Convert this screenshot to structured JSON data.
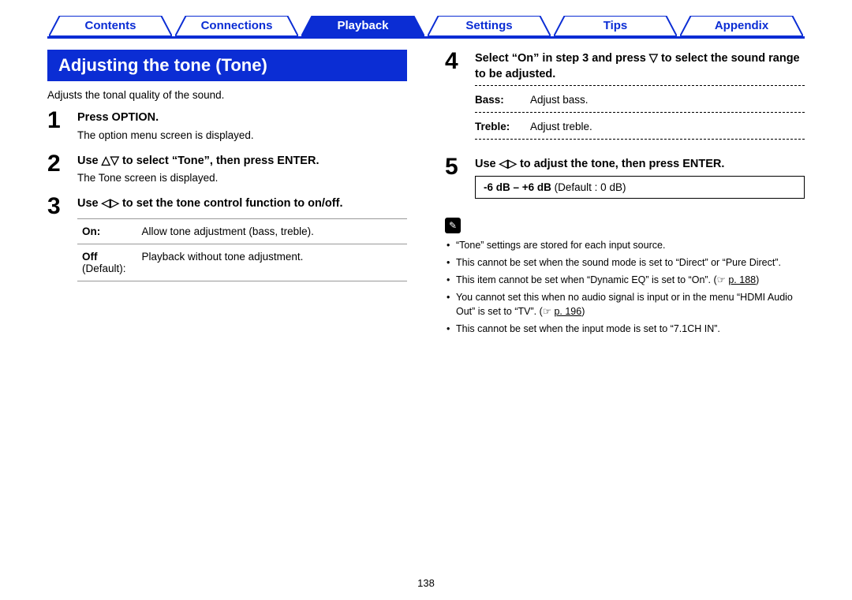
{
  "tabs": [
    {
      "label": "Contents",
      "active": false
    },
    {
      "label": "Connections",
      "active": false
    },
    {
      "label": "Playback",
      "active": true
    },
    {
      "label": "Settings",
      "active": false
    },
    {
      "label": "Tips",
      "active": false
    },
    {
      "label": "Appendix",
      "active": false
    }
  ],
  "colors": {
    "accent": "#0b2dd4",
    "text": "#000000",
    "bg": "#ffffff"
  },
  "heading": "Adjusting the tone (Tone)",
  "intro": "Adjusts the tonal quality of the sound.",
  "left_steps": [
    {
      "num": "1",
      "bold": "Press OPTION.",
      "sub": "The option menu screen is displayed."
    },
    {
      "num": "2",
      "bold_parts": [
        "Use ",
        "△▽",
        " to select “Tone”, then press ENTER."
      ],
      "sub": "The Tone screen is displayed."
    },
    {
      "num": "3",
      "bold_parts": [
        "Use ",
        "◁▷",
        " to set the tone control function to on/off."
      ],
      "table": [
        {
          "k": "On:",
          "v": "Allow tone adjustment (bass, treble)."
        },
        {
          "k": "Off",
          "kdef": "(Default):",
          "v": "Playback without tone adjustment."
        }
      ]
    }
  ],
  "right_steps": [
    {
      "num": "4",
      "bold_parts": [
        "Select “On” in step 3 and press ",
        "▽",
        " to select the sound range to be adjusted."
      ],
      "dotted_table": [
        {
          "k": "Bass:",
          "v": "Adjust bass."
        },
        {
          "k": "Treble:",
          "v": "Adjust treble."
        }
      ]
    },
    {
      "num": "5",
      "bold_parts": [
        "Use ",
        "◁▷",
        " to adjust the tone, then press ENTER."
      ],
      "range": {
        "bold": "-6 dB – +6 dB",
        "rest": " (Default : 0 dB)"
      }
    }
  ],
  "notes": [
    {
      "text": "“Tone” settings are stored for each input source."
    },
    {
      "text": "This cannot be set when the sound mode is set to “Direct” or “Pure Direct”."
    },
    {
      "text": "This item cannot be set when “Dynamic EQ” is set to “On”. (",
      "link": "p. 188",
      "after": ")"
    },
    {
      "text": "You cannot set this when no audio signal is input or in the menu “HDMI Audio Out” is set to “TV”. (",
      "link": "p. 196",
      "after": ")"
    },
    {
      "text": "This cannot be set when the input mode is set to “7.1CH IN”."
    }
  ],
  "page_number": "138",
  "icons": {
    "up": "△",
    "down": "▽",
    "left": "◁",
    "right": "▷",
    "pencil": "✎",
    "pointer": "☞"
  }
}
